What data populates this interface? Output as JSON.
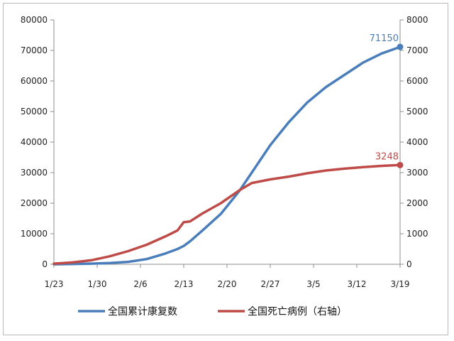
{
  "chart_data": {
    "type": "line",
    "title": "",
    "xlabel": "",
    "ylabel": "",
    "y2label": "",
    "categories": [
      "1/23",
      "1/26",
      "1/29",
      "2/1",
      "2/4",
      "2/7",
      "2/10",
      "2/12",
      "2/13",
      "2/14",
      "2/16",
      "2/19",
      "2/22",
      "2/24",
      "2/27",
      "3/1",
      "3/4",
      "3/7",
      "3/10",
      "3/13",
      "3/16",
      "3/19"
    ],
    "x_tick_labels": [
      "1/23",
      "1/30",
      "2/6",
      "2/13",
      "2/20",
      "2/27",
      "3/5",
      "3/12",
      "3/19"
    ],
    "ylim": [
      0,
      80000
    ],
    "y_ticks": [
      "0",
      "10000",
      "20000",
      "30000",
      "40000",
      "50000",
      "60000",
      "70000",
      "80000"
    ],
    "y2lim": [
      0,
      8000
    ],
    "y2_ticks": [
      "0",
      "1000",
      "2000",
      "3000",
      "4000",
      "5000",
      "6000",
      "7000",
      "8000"
    ],
    "grid": false,
    "legend_position": "bottom",
    "series": [
      {
        "name": "全国累计康复数",
        "axis": "left",
        "color": "#4a7ebb",
        "values": [
          0,
          100,
          200,
          400,
          800,
          1700,
          3500,
          5000,
          6000,
          7500,
          11000,
          16500,
          24000,
          30000,
          39000,
          46500,
          53000,
          58000,
          62000,
          66000,
          69000,
          71150
        ],
        "end_label": "71150"
      },
      {
        "name": "全国死亡病例（右轴）",
        "axis": "right",
        "color": "#be4b48",
        "values": [
          20,
          60,
          130,
          260,
          430,
          640,
          910,
          1110,
          1380,
          1400,
          1660,
          2000,
          2420,
          2660,
          2780,
          2870,
          2980,
          3070,
          3130,
          3180,
          3220,
          3248
        ],
        "end_label": "3248"
      }
    ]
  }
}
